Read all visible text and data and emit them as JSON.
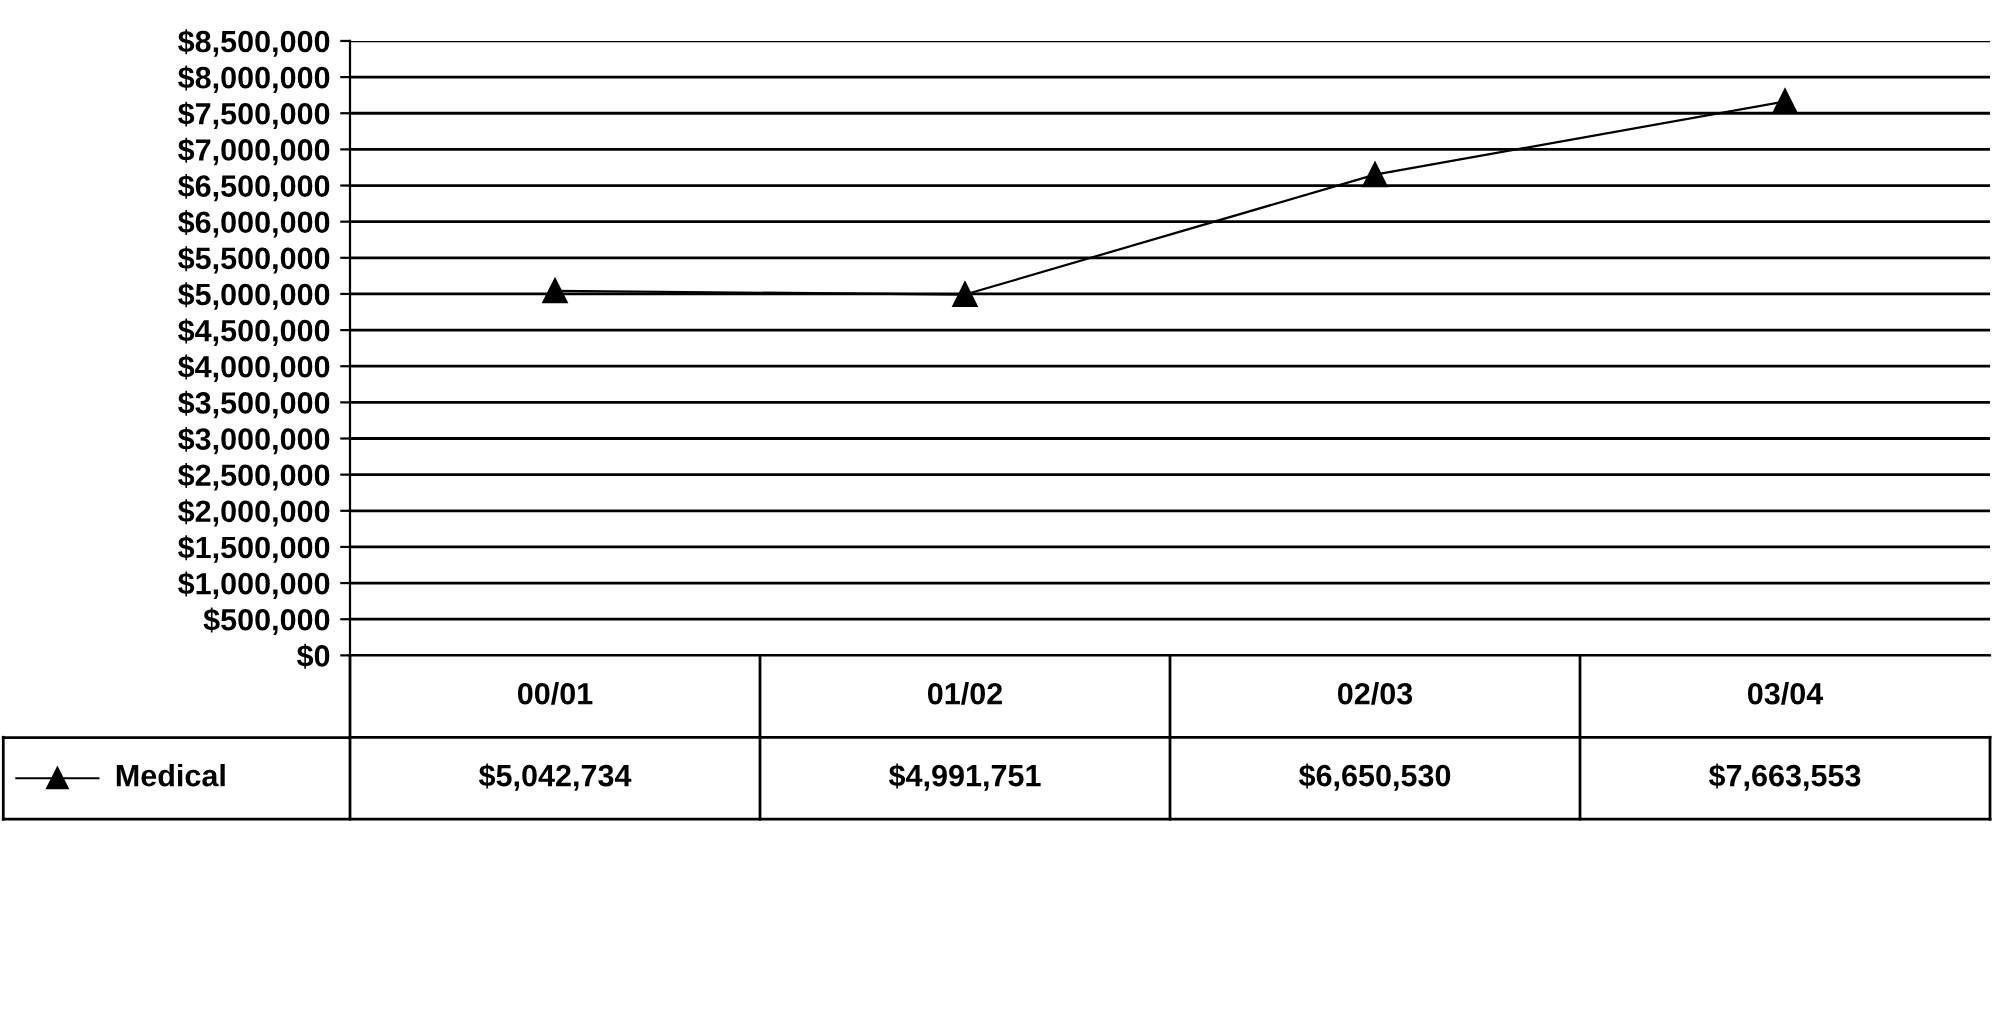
{
  "chart_data": {
    "type": "line",
    "categories": [
      "00/01",
      "01/02",
      "02/03",
      "03/04"
    ],
    "series": [
      {
        "name": "Medical",
        "color": "#000000",
        "values": [
          5042734,
          4991751,
          6650530,
          7663553
        ],
        "value_labels": [
          "$5,042,734",
          "$4,991,751",
          "$6,650,530",
          "$7,663,553"
        ]
      }
    ],
    "ylim": [
      0,
      8500000
    ],
    "yticks": [
      {
        "value": 0,
        "label": "$0"
      },
      {
        "value": 500000,
        "label": "$500,000"
      },
      {
        "value": 1000000,
        "label": "$1,000,000"
      },
      {
        "value": 1500000,
        "label": "$1,500,000"
      },
      {
        "value": 2000000,
        "label": "$2,000,000"
      },
      {
        "value": 2500000,
        "label": "$2,500,000"
      },
      {
        "value": 3000000,
        "label": "$3,000,000"
      },
      {
        "value": 3500000,
        "label": "$3,500,000"
      },
      {
        "value": 4000000,
        "label": "$4,000,000"
      },
      {
        "value": 4500000,
        "label": "$4,500,000"
      },
      {
        "value": 5000000,
        "label": "$5,000,000"
      },
      {
        "value": 5500000,
        "label": "$5,500,000"
      },
      {
        "value": 6000000,
        "label": "$6,000,000"
      },
      {
        "value": 6500000,
        "label": "$6,500,000"
      },
      {
        "value": 7000000,
        "label": "$7,000,000"
      },
      {
        "value": 7500000,
        "label": "$7,500,000"
      },
      {
        "value": 8000000,
        "label": "$8,000,000"
      },
      {
        "value": 8500000,
        "label": "$8,500,000"
      }
    ],
    "grid": "y",
    "legend": "bottom left",
    "marker": "triangle",
    "line_style": "solid",
    "data_labels": true
  }
}
